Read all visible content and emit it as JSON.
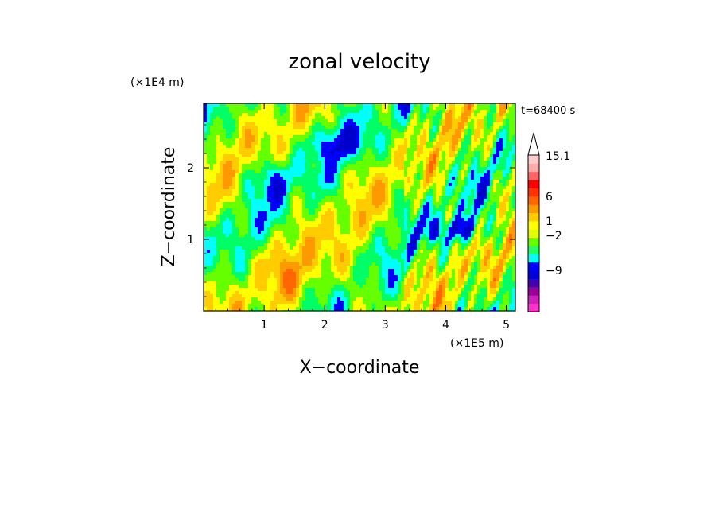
{
  "chart_data": {
    "type": "heatmap",
    "title": "zonal velocity",
    "xlabel": "X−coordinate",
    "ylabel": "Z−coordinate",
    "x_unit": "(×1E5 m)",
    "y_unit": "(×1E4 m)",
    "time_label": "t=68400 s",
    "xlim": [
      0,
      5.15
    ],
    "ylim": [
      0,
      2.9
    ],
    "x_ticks": [
      "1",
      "2",
      "3",
      "4",
      "5"
    ],
    "y_ticks": [
      "1",
      "2"
    ],
    "colorbar": {
      "levels": [
        {
          "color": "#ff33cc"
        },
        {
          "color": "#cc22bb"
        },
        {
          "color": "#990099"
        },
        {
          "color": "#4400aa"
        },
        {
          "color": "#0000dd"
        },
        {
          "color": "#0000ff"
        },
        {
          "color": "#00ffff"
        },
        {
          "color": "#22ff66"
        },
        {
          "color": "#66ff00"
        },
        {
          "color": "#ddff00"
        },
        {
          "color": "#ffff00"
        },
        {
          "color": "#ffcc00"
        },
        {
          "color": "#ff9900"
        },
        {
          "color": "#ff6600"
        },
        {
          "color": "#ff3300"
        },
        {
          "color": "#ff0000"
        },
        {
          "color": "#ff6666"
        },
        {
          "color": "#ffaaaa"
        },
        {
          "color": "#ffcccc"
        }
      ],
      "labels": [
        "15.1",
        "6",
        "1",
        "−2",
        "−9"
      ]
    },
    "field_palette": [
      "#0000cc",
      "#0000ff",
      "#00ffff",
      "#00ff66",
      "#66ff00",
      "#ffff00",
      "#ffcc00",
      "#ff9900",
      "#ff6600"
    ]
  }
}
